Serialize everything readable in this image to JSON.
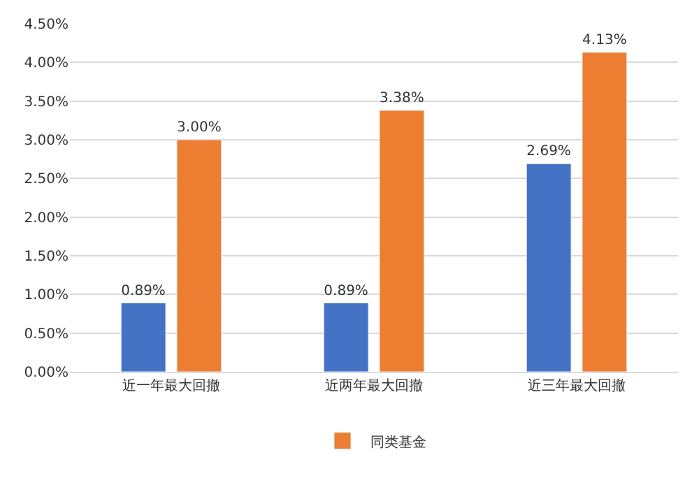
{
  "chart_data": {
    "type": "bar",
    "categories": [
      "近一年最大回撤",
      "近两年最大回撤",
      "近三年最大回撤"
    ],
    "series": [
      {
        "color": "#4472c4",
        "values": [
          0.89,
          0.89,
          2.69
        ],
        "value_labels": [
          "0.89%",
          "0.89%",
          "2.69%"
        ]
      },
      {
        "name": "同类基金",
        "color": "#ed7d31",
        "values": [
          3.0,
          3.38,
          4.13
        ],
        "value_labels": [
          "3.00%",
          "3.38%",
          "4.13%"
        ]
      }
    ],
    "ylim": [
      0,
      4.5
    ],
    "yticks": [
      {
        "value": 0,
        "label": "0.00%"
      },
      {
        "value": 0.5,
        "label": "0.50%"
      },
      {
        "value": 1,
        "label": "1.00%"
      },
      {
        "value": 1.5,
        "label": "1.50%"
      },
      {
        "value": 2,
        "label": "2.00%"
      },
      {
        "value": 2.5,
        "label": "2.50%"
      },
      {
        "value": 3,
        "label": "3.00%"
      },
      {
        "value": 3.5,
        "label": "3.50%"
      },
      {
        "value": 4,
        "label": "4.00%"
      },
      {
        "value": 4.5,
        "label": "4.50%"
      }
    ],
    "grid": "y",
    "legend": "bottom"
  }
}
